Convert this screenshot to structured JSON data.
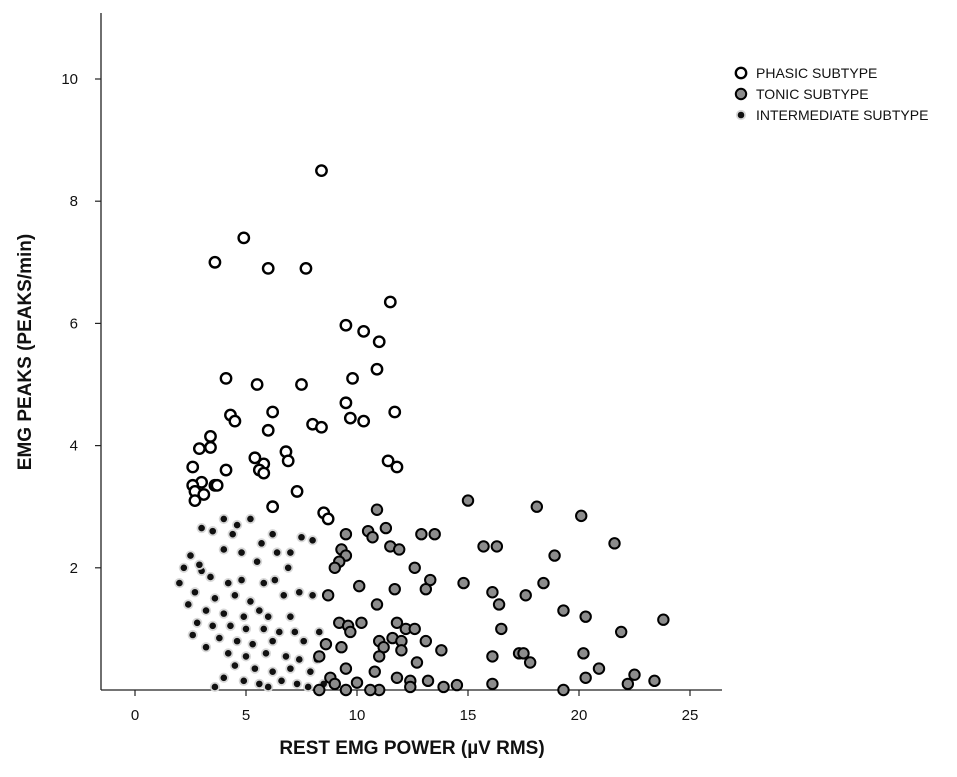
{
  "chart_data": {
    "type": "scatter",
    "xlabel": "REST EMG POWER (µV RMS)",
    "ylabel": "EMG PEAKS (PEAKS/min)",
    "xlim": [
      -1.5,
      26.5
    ],
    "ylim": [
      0,
      11
    ],
    "xticks": [
      "0",
      "5",
      "10",
      "15",
      "20",
      "25"
    ],
    "yticks": [
      "2",
      "4",
      "6",
      "8",
      "10"
    ],
    "grid": false,
    "legend_position": "top-right",
    "series": [
      {
        "name": "PHASIC SUBTYPE",
        "marker": "open-circle",
        "points": [
          [
            8.4,
            8.5
          ],
          [
            4.9,
            7.4
          ],
          [
            3.6,
            7.0
          ],
          [
            6.0,
            6.9
          ],
          [
            7.7,
            6.9
          ],
          [
            11.5,
            6.35
          ],
          [
            9.5,
            5.97
          ],
          [
            10.3,
            5.87
          ],
          [
            11.0,
            5.7
          ],
          [
            10.9,
            5.25
          ],
          [
            9.8,
            5.1
          ],
          [
            4.1,
            5.1
          ],
          [
            5.5,
            5.0
          ],
          [
            7.5,
            5.0
          ],
          [
            9.5,
            4.7
          ],
          [
            4.3,
            4.5
          ],
          [
            6.2,
            4.55
          ],
          [
            4.5,
            4.4
          ],
          [
            9.7,
            4.45
          ],
          [
            10.3,
            4.4
          ],
          [
            11.7,
            4.55
          ],
          [
            8.0,
            4.35
          ],
          [
            8.4,
            4.3
          ],
          [
            6.0,
            4.25
          ],
          [
            3.4,
            4.15
          ],
          [
            3.4,
            3.97
          ],
          [
            2.9,
            3.95
          ],
          [
            6.8,
            3.9
          ],
          [
            6.9,
            3.75
          ],
          [
            5.4,
            3.8
          ],
          [
            5.8,
            3.7
          ],
          [
            5.6,
            3.6
          ],
          [
            5.8,
            3.55
          ],
          [
            4.1,
            3.6
          ],
          [
            2.6,
            3.65
          ],
          [
            11.4,
            3.75
          ],
          [
            11.8,
            3.65
          ],
          [
            3.0,
            3.4
          ],
          [
            3.6,
            3.35
          ],
          [
            2.6,
            3.35
          ],
          [
            3.7,
            3.35
          ],
          [
            2.7,
            3.25
          ],
          [
            3.1,
            3.2
          ],
          [
            2.7,
            3.1
          ],
          [
            7.3,
            3.25
          ],
          [
            6.2,
            3.0
          ],
          [
            8.5,
            2.9
          ],
          [
            8.7,
            2.8
          ]
        ]
      },
      {
        "name": "TONIC SUBTYPE",
        "marker": "gray-circle",
        "points": [
          [
            15.0,
            3.1
          ],
          [
            18.1,
            3.0
          ],
          [
            20.1,
            2.85
          ],
          [
            21.6,
            2.4
          ],
          [
            10.9,
            2.95
          ],
          [
            11.3,
            2.65
          ],
          [
            10.5,
            2.6
          ],
          [
            9.5,
            2.55
          ],
          [
            10.7,
            2.5
          ],
          [
            13.5,
            2.55
          ],
          [
            12.9,
            2.55
          ],
          [
            11.5,
            2.35
          ],
          [
            11.9,
            2.3
          ],
          [
            9.3,
            2.3
          ],
          [
            9.5,
            2.2
          ],
          [
            9.2,
            2.1
          ],
          [
            9.0,
            2.0
          ],
          [
            15.7,
            2.35
          ],
          [
            16.3,
            2.35
          ],
          [
            18.9,
            2.2
          ],
          [
            12.6,
            2.0
          ],
          [
            13.3,
            1.8
          ],
          [
            13.1,
            1.65
          ],
          [
            14.8,
            1.75
          ],
          [
            10.1,
            1.7
          ],
          [
            11.7,
            1.65
          ],
          [
            16.1,
            1.6
          ],
          [
            17.6,
            1.55
          ],
          [
            18.4,
            1.75
          ],
          [
            8.7,
            1.55
          ],
          [
            10.9,
            1.4
          ],
          [
            16.4,
            1.4
          ],
          [
            19.3,
            1.3
          ],
          [
            20.3,
            1.2
          ],
          [
            23.8,
            1.15
          ],
          [
            9.2,
            1.1
          ],
          [
            9.6,
            1.05
          ],
          [
            10.2,
            1.1
          ],
          [
            11.8,
            1.1
          ],
          [
            12.2,
            1.0
          ],
          [
            12.6,
            1.0
          ],
          [
            9.7,
            0.95
          ],
          [
            16.5,
            1.0
          ],
          [
            21.9,
            0.95
          ],
          [
            11.6,
            0.85
          ],
          [
            11.0,
            0.8
          ],
          [
            12.0,
            0.8
          ],
          [
            13.1,
            0.8
          ],
          [
            8.6,
            0.75
          ],
          [
            9.3,
            0.7
          ],
          [
            11.2,
            0.7
          ],
          [
            12.0,
            0.65
          ],
          [
            13.8,
            0.65
          ],
          [
            17.3,
            0.6
          ],
          [
            17.5,
            0.6
          ],
          [
            16.1,
            0.55
          ],
          [
            20.2,
            0.6
          ],
          [
            8.3,
            0.55
          ],
          [
            11.0,
            0.55
          ],
          [
            12.7,
            0.45
          ],
          [
            17.8,
            0.45
          ],
          [
            20.9,
            0.35
          ],
          [
            9.5,
            0.35
          ],
          [
            10.8,
            0.3
          ],
          [
            8.8,
            0.2
          ],
          [
            11.8,
            0.2
          ],
          [
            12.4,
            0.15
          ],
          [
            13.2,
            0.15
          ],
          [
            16.1,
            0.1
          ],
          [
            20.3,
            0.2
          ],
          [
            22.5,
            0.25
          ],
          [
            22.2,
            0.1
          ],
          [
            23.4,
            0.15
          ],
          [
            9.0,
            0.1
          ],
          [
            10.0,
            0.12
          ],
          [
            12.4,
            0.05
          ],
          [
            9.5,
            0.0
          ],
          [
            11.0,
            0.0
          ],
          [
            13.9,
            0.05
          ],
          [
            14.5,
            0.08
          ],
          [
            19.3,
            0.0
          ],
          [
            8.3,
            0.0
          ],
          [
            10.6,
            0.0
          ]
        ]
      },
      {
        "name": "INTERMEDIATE SUBTYPE",
        "marker": "dot",
        "points": [
          [
            3.0,
            2.65
          ],
          [
            4.0,
            2.8
          ],
          [
            4.6,
            2.7
          ],
          [
            5.2,
            2.8
          ],
          [
            6.2,
            2.55
          ],
          [
            7.5,
            2.5
          ],
          [
            3.5,
            2.6
          ],
          [
            4.4,
            2.55
          ],
          [
            5.7,
            2.4
          ],
          [
            2.5,
            2.2
          ],
          [
            4.0,
            2.3
          ],
          [
            4.8,
            2.25
          ],
          [
            5.5,
            2.1
          ],
          [
            6.4,
            2.25
          ],
          [
            7.0,
            2.25
          ],
          [
            2.2,
            2.0
          ],
          [
            3.0,
            1.95
          ],
          [
            3.4,
            1.85
          ],
          [
            4.2,
            1.75
          ],
          [
            4.8,
            1.8
          ],
          [
            5.8,
            1.75
          ],
          [
            6.3,
            1.8
          ],
          [
            2.0,
            1.75
          ],
          [
            2.7,
            1.6
          ],
          [
            3.6,
            1.5
          ],
          [
            4.5,
            1.55
          ],
          [
            5.2,
            1.45
          ],
          [
            6.7,
            1.55
          ],
          [
            7.4,
            1.6
          ],
          [
            8.0,
            1.55
          ],
          [
            2.4,
            1.4
          ],
          [
            3.2,
            1.3
          ],
          [
            4.0,
            1.25
          ],
          [
            4.9,
            1.2
          ],
          [
            5.6,
            1.3
          ],
          [
            6.0,
            1.2
          ],
          [
            7.0,
            1.2
          ],
          [
            2.8,
            1.1
          ],
          [
            3.5,
            1.05
          ],
          [
            4.3,
            1.05
          ],
          [
            5.0,
            1.0
          ],
          [
            5.8,
            1.0
          ],
          [
            6.5,
            0.95
          ],
          [
            7.2,
            0.95
          ],
          [
            8.3,
            0.95
          ],
          [
            2.6,
            0.9
          ],
          [
            3.8,
            0.85
          ],
          [
            4.6,
            0.8
          ],
          [
            5.3,
            0.75
          ],
          [
            6.2,
            0.8
          ],
          [
            7.6,
            0.8
          ],
          [
            3.2,
            0.7
          ],
          [
            4.2,
            0.6
          ],
          [
            5.0,
            0.55
          ],
          [
            5.9,
            0.6
          ],
          [
            6.8,
            0.55
          ],
          [
            7.4,
            0.5
          ],
          [
            8.2,
            0.5
          ],
          [
            4.5,
            0.4
          ],
          [
            5.4,
            0.35
          ],
          [
            6.2,
            0.3
          ],
          [
            7.0,
            0.35
          ],
          [
            7.9,
            0.3
          ],
          [
            4.0,
            0.2
          ],
          [
            4.9,
            0.15
          ],
          [
            5.6,
            0.1
          ],
          [
            6.6,
            0.15
          ],
          [
            7.3,
            0.1
          ],
          [
            8.5,
            0.1
          ],
          [
            3.6,
            0.05
          ],
          [
            6.0,
            0.05
          ],
          [
            7.8,
            0.05
          ],
          [
            8.0,
            2.45
          ],
          [
            2.9,
            2.05
          ],
          [
            6.9,
            2.0
          ]
        ]
      }
    ]
  }
}
